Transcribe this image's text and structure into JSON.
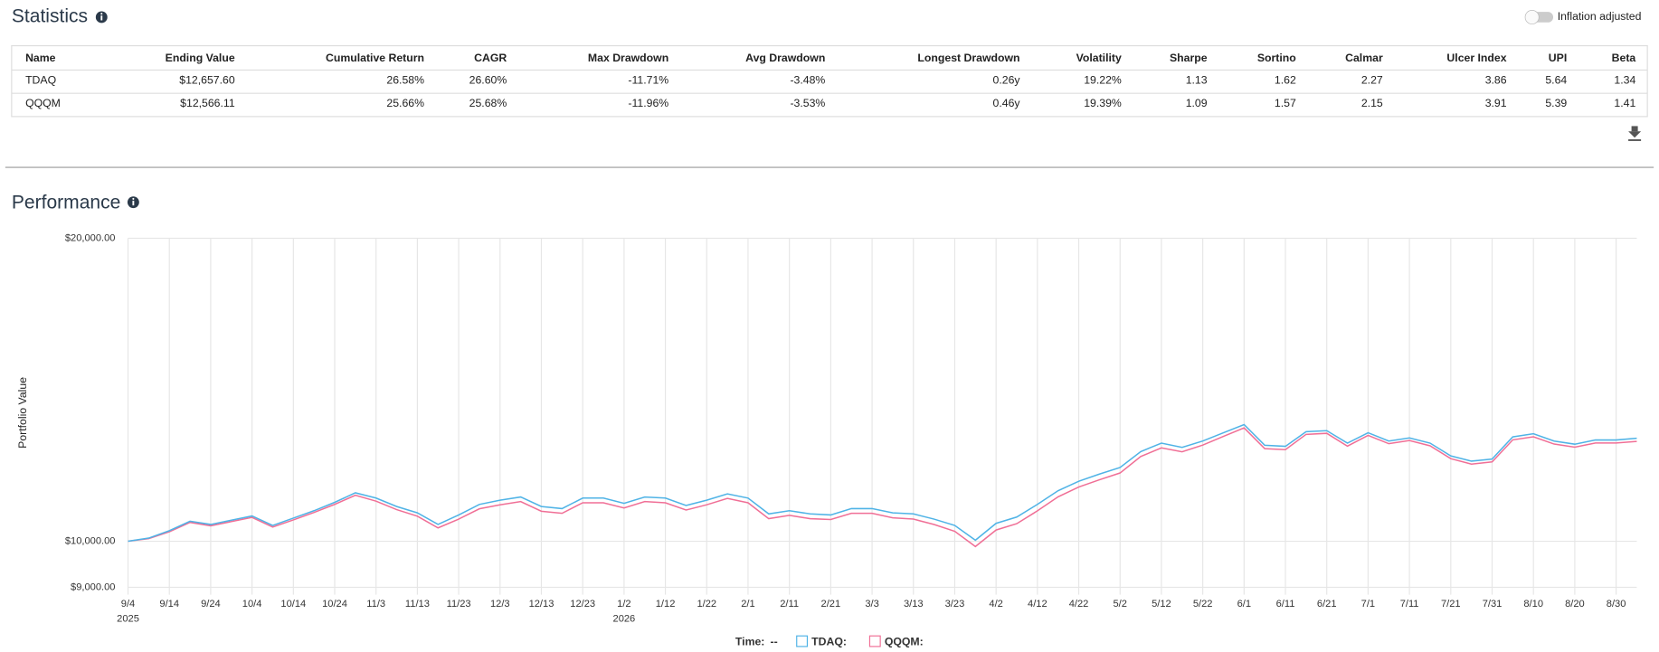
{
  "header": {
    "title": "Statistics",
    "toggle_label": "Inflation adjusted"
  },
  "table": {
    "columns": [
      "Name",
      "Ending Value",
      "Cumulative Return",
      "CAGR",
      "Max Drawdown",
      "Avg Drawdown",
      "Longest Drawdown",
      "Volatility",
      "Sharpe",
      "Sortino",
      "Calmar",
      "Ulcer Index",
      "UPI",
      "Beta"
    ],
    "rows": [
      [
        "TDAQ",
        "$12,657.60",
        "26.58%",
        "26.60%",
        "-11.71%",
        "-3.48%",
        "0.26y",
        "19.22%",
        "1.13",
        "1.62",
        "2.27",
        "3.86",
        "5.64",
        "1.34"
      ],
      [
        "QQQM",
        "$12,566.11",
        "25.66%",
        "25.68%",
        "-11.96%",
        "-3.53%",
        "0.46y",
        "19.39%",
        "1.09",
        "1.57",
        "2.15",
        "3.91",
        "5.39",
        "1.41"
      ]
    ]
  },
  "performance": {
    "title": "Performance"
  },
  "chart_data": {
    "type": "line",
    "ylabel": "Portfolio Value",
    "log_y": true,
    "grid": true,
    "x": [
      "2025-09-04",
      "2025-09-09",
      "2025-09-14",
      "2025-09-19",
      "2025-09-24",
      "2025-09-29",
      "2025-10-04",
      "2025-10-09",
      "2025-10-14",
      "2025-10-19",
      "2025-10-24",
      "2025-10-29",
      "2025-11-03",
      "2025-11-08",
      "2025-11-13",
      "2025-11-18",
      "2025-11-23",
      "2025-11-28",
      "2025-12-03",
      "2025-12-08",
      "2025-12-13",
      "2025-12-18",
      "2025-12-23",
      "2025-12-28",
      "2026-01-02",
      "2026-01-07",
      "2026-01-12",
      "2026-01-17",
      "2026-01-22",
      "2026-01-27",
      "2026-02-01",
      "2026-02-06",
      "2026-02-11",
      "2026-02-16",
      "2026-02-21",
      "2026-02-26",
      "2026-03-03",
      "2026-03-08",
      "2026-03-13",
      "2026-03-18",
      "2026-03-23",
      "2026-03-28",
      "2026-04-02",
      "2026-04-07",
      "2026-04-12",
      "2026-04-17",
      "2026-04-22",
      "2026-04-27",
      "2026-05-02",
      "2026-05-07",
      "2026-05-12",
      "2026-05-17",
      "2026-05-22",
      "2026-05-27",
      "2026-06-01",
      "2026-06-06",
      "2026-06-11",
      "2026-06-16",
      "2026-06-21",
      "2026-06-26",
      "2026-07-01",
      "2026-07-06",
      "2026-07-11",
      "2026-07-16",
      "2026-07-21",
      "2026-07-26",
      "2026-07-31",
      "2026-08-05",
      "2026-08-10",
      "2026-08-15",
      "2026-08-20",
      "2026-08-25",
      "2026-08-30",
      "2026-09-04"
    ],
    "series": [
      {
        "name": "TDAQ:",
        "color": "#4fb3e6",
        "values": [
          10000,
          10072,
          10244,
          10468,
          10392,
          10493,
          10595,
          10368,
          10544,
          10723,
          10931,
          11171,
          11038,
          10827,
          10671,
          10392,
          10620,
          10879,
          10984,
          11065,
          10827,
          10775,
          11038,
          11038,
          10905,
          11065,
          11038,
          10853,
          10984,
          11144,
          11038,
          10646,
          10723,
          10646,
          10620,
          10775,
          10775,
          10671,
          10646,
          10519,
          10368,
          10024,
          10418,
          10569,
          10879,
          11225,
          11470,
          11660,
          11838,
          12276,
          12516,
          12395,
          12576,
          12817,
          13059,
          12455,
          12425,
          12848,
          12878,
          12516,
          12817,
          12576,
          12666,
          12516,
          12156,
          12011,
          12069,
          12696,
          12787,
          12576,
          12486,
          12606,
          12606,
          12657.6
        ]
      },
      {
        "name": "QQQM:",
        "color": "#f06f96",
        "values": [
          10000,
          10060,
          10220,
          10440,
          10360,
          10460,
          10560,
          10330,
          10500,
          10680,
          10880,
          11110,
          10960,
          10750,
          10590,
          10310,
          10520,
          10770,
          10870,
          10950,
          10710,
          10660,
          10920,
          10920,
          10790,
          10950,
          10920,
          10740,
          10870,
          11030,
          10920,
          10530,
          10610,
          10530,
          10510,
          10660,
          10660,
          10550,
          10520,
          10390,
          10230,
          9880,
          10260,
          10410,
          10720,
          11070,
          11320,
          11510,
          11690,
          12140,
          12380,
          12270,
          12460,
          12710,
          12960,
          12360,
          12330,
          12770,
          12800,
          12430,
          12740,
          12500,
          12590,
          12440,
          12080,
          11930,
          11990,
          12610,
          12700,
          12490,
          12400,
          12520,
          12520,
          12566.11
        ]
      }
    ],
    "xlim": [
      "2025-09-04",
      "2026-09-04"
    ],
    "ylim": [
      8850,
      20000
    ],
    "yticks": [
      {
        "value": 9000,
        "label": "$9,000.00"
      },
      {
        "value": 10000,
        "label": "$10,000.00"
      },
      {
        "value": 20000,
        "label": "$20,000.00"
      }
    ],
    "xticks": [
      {
        "value": "2025-09-04",
        "label": "9/4"
      },
      {
        "value": "2025-09-14",
        "label": "9/14"
      },
      {
        "value": "2025-09-24",
        "label": "9/24"
      },
      {
        "value": "2025-10-04",
        "label": "10/4"
      },
      {
        "value": "2025-10-14",
        "label": "10/14"
      },
      {
        "value": "2025-10-24",
        "label": "10/24"
      },
      {
        "value": "2025-11-03",
        "label": "11/3"
      },
      {
        "value": "2025-11-13",
        "label": "11/13"
      },
      {
        "value": "2025-11-23",
        "label": "11/23"
      },
      {
        "value": "2025-12-03",
        "label": "12/3"
      },
      {
        "value": "2025-12-13",
        "label": "12/13"
      },
      {
        "value": "2025-12-23",
        "label": "12/23"
      },
      {
        "value": "2026-01-02",
        "label": "1/2"
      },
      {
        "value": "2026-01-12",
        "label": "1/12"
      },
      {
        "value": "2026-01-22",
        "label": "1/22"
      },
      {
        "value": "2026-02-01",
        "label": "2/1"
      },
      {
        "value": "2026-02-11",
        "label": "2/11"
      },
      {
        "value": "2026-02-21",
        "label": "2/21"
      },
      {
        "value": "2026-03-03",
        "label": "3/3"
      },
      {
        "value": "2026-03-13",
        "label": "3/13"
      },
      {
        "value": "2026-03-23",
        "label": "3/23"
      },
      {
        "value": "2026-04-02",
        "label": "4/2"
      },
      {
        "value": "2026-04-12",
        "label": "4/12"
      },
      {
        "value": "2026-04-22",
        "label": "4/22"
      },
      {
        "value": "2026-05-02",
        "label": "5/2"
      },
      {
        "value": "2026-05-12",
        "label": "5/12"
      },
      {
        "value": "2026-05-22",
        "label": "5/22"
      },
      {
        "value": "2026-06-01",
        "label": "6/1"
      },
      {
        "value": "2026-06-11",
        "label": "6/11"
      },
      {
        "value": "2026-06-21",
        "label": "6/21"
      },
      {
        "value": "2026-07-01",
        "label": "7/1"
      },
      {
        "value": "2026-07-11",
        "label": "7/11"
      },
      {
        "value": "2026-07-21",
        "label": "7/21"
      },
      {
        "value": "2026-07-31",
        "label": "7/31"
      },
      {
        "value": "2026-08-10",
        "label": "8/10"
      },
      {
        "value": "2026-08-20",
        "label": "8/20"
      },
      {
        "value": "2026-08-30",
        "label": "8/30"
      }
    ],
    "x_year_labels": [
      {
        "value": "2025-09-04",
        "label": "2025"
      },
      {
        "value": "2026-01-02",
        "label": "2026"
      }
    ],
    "legend_time_label": "Time:",
    "legend_time_value": "--"
  }
}
